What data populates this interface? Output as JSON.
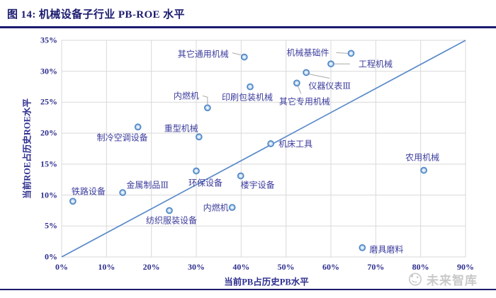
{
  "header": {
    "title": "图 14:  机械设备子行业 PB-ROE 水平"
  },
  "watermark": {
    "text": "未来智库",
    "icon": "mascot-circle-icon"
  },
  "colors": {
    "title_navy": "#1b1b6f",
    "tick_blue": "#2e2e8f",
    "label_blue": "#3c3c9e",
    "grid": "#d9d9d9",
    "trend": "#5b8bc9",
    "leader": "#a9a9a9",
    "marker_border": "#4e87c6",
    "marker_fill": "#c3d9ef",
    "watermark_gray": "#c9c9c9"
  },
  "chart_data": {
    "type": "scatter",
    "title": "机械设备子行业 PB-ROE 水平",
    "xlabel": "当前PB占历史PB水平",
    "ylabel": "当前ROE占历史ROE水平",
    "xlim": [
      0,
      90
    ],
    "ylim": [
      0,
      35
    ],
    "x_ticks": [
      "0%",
      "10%",
      "20%",
      "30%",
      "40%",
      "50%",
      "60%",
      "70%",
      "80%",
      "90%"
    ],
    "y_ticks": [
      "0%",
      "5%",
      "10%",
      "15%",
      "20%",
      "25%",
      "30%",
      "35%"
    ],
    "grid": true,
    "legend": false,
    "trend_line": {
      "from": [
        0,
        0
      ],
      "to": [
        90,
        35
      ]
    },
    "points": [
      {
        "label": "铁路设备",
        "x": 2.5,
        "y": 9.0,
        "label_offset": [
          22,
          -14
        ],
        "leader": null
      },
      {
        "label": "金属制品Ⅲ",
        "x": 13.6,
        "y": 10.4,
        "label_offset": [
          35,
          -11
        ],
        "leader": null
      },
      {
        "label": "制冷空调设备",
        "x": 17.0,
        "y": 21.0,
        "label_offset": [
          -22,
          15
        ],
        "leader": null
      },
      {
        "label": "纺织服装设备",
        "x": 24.0,
        "y": 7.5,
        "label_offset": [
          3,
          14
        ],
        "leader": null
      },
      {
        "label": "环保设备",
        "x": 30.0,
        "y": 13.9,
        "label_offset": [
          13,
          17
        ],
        "leader": null
      },
      {
        "label": "重型机械",
        "x": 30.6,
        "y": 19.4,
        "label_offset": [
          -25,
          -12
        ],
        "leader": null
      },
      {
        "label": "内燃机",
        "x": 32.5,
        "y": 24.1,
        "label_offset": [
          -30,
          -17
        ],
        "leader": [
          [
            -7,
            -17
          ],
          [
            0,
            -15
          ],
          [
            0,
            -5
          ]
        ]
      },
      {
        "label": "内燃机",
        "x": 38.0,
        "y": 8.0,
        "label_offset": [
          -23,
          0
        ],
        "leader": null
      },
      {
        "label": "楼宇设备",
        "x": 39.9,
        "y": 13.1,
        "label_offset": [
          24,
          13
        ],
        "leader": null
      },
      {
        "label": "其它通用机械",
        "x": 40.7,
        "y": 32.3,
        "label_offset": [
          -58,
          -5
        ],
        "leader": [
          [
            -17,
            -6
          ],
          [
            -5,
            -3
          ]
        ]
      },
      {
        "label": "印刷包装机械",
        "x": 42.0,
        "y": 27.5,
        "label_offset": [
          -4,
          14
        ],
        "leader": null
      },
      {
        "label": "机床工具",
        "x": 46.6,
        "y": 18.3,
        "label_offset": [
          35,
          0
        ],
        "leader": null
      },
      {
        "label": "其它专用机械",
        "x": 52.4,
        "y": 28.1,
        "label_offset": [
          11,
          26
        ],
        "leader": [
          [
            1,
            3
          ],
          [
            6,
            15
          ]
        ]
      },
      {
        "label": "仪器仪表Ⅲ",
        "x": 54.5,
        "y": 29.8,
        "label_offset": [
          33,
          19
        ],
        "leader": [
          [
            3,
            2
          ],
          [
            33,
            8
          ]
        ]
      },
      {
        "label": "工程机械",
        "x": 60.0,
        "y": 31.2,
        "label_offset": [
          63,
          0
        ],
        "leader": [
          [
            5,
            0
          ],
          [
            27,
            0
          ]
        ]
      },
      {
        "label": "机械基础件",
        "x": 64.5,
        "y": 32.9,
        "label_offset": [
          -61,
          -1
        ],
        "leader": [
          [
            -21,
            -1
          ],
          [
            -5,
            0
          ]
        ]
      },
      {
        "label": "磨具磨料",
        "x": 67.0,
        "y": 1.5,
        "label_offset": [
          34,
          2
        ],
        "leader": null
      },
      {
        "label": "农用机械",
        "x": 80.7,
        "y": 14.0,
        "label_offset": [
          -2,
          -19
        ],
        "leader": null
      }
    ]
  }
}
